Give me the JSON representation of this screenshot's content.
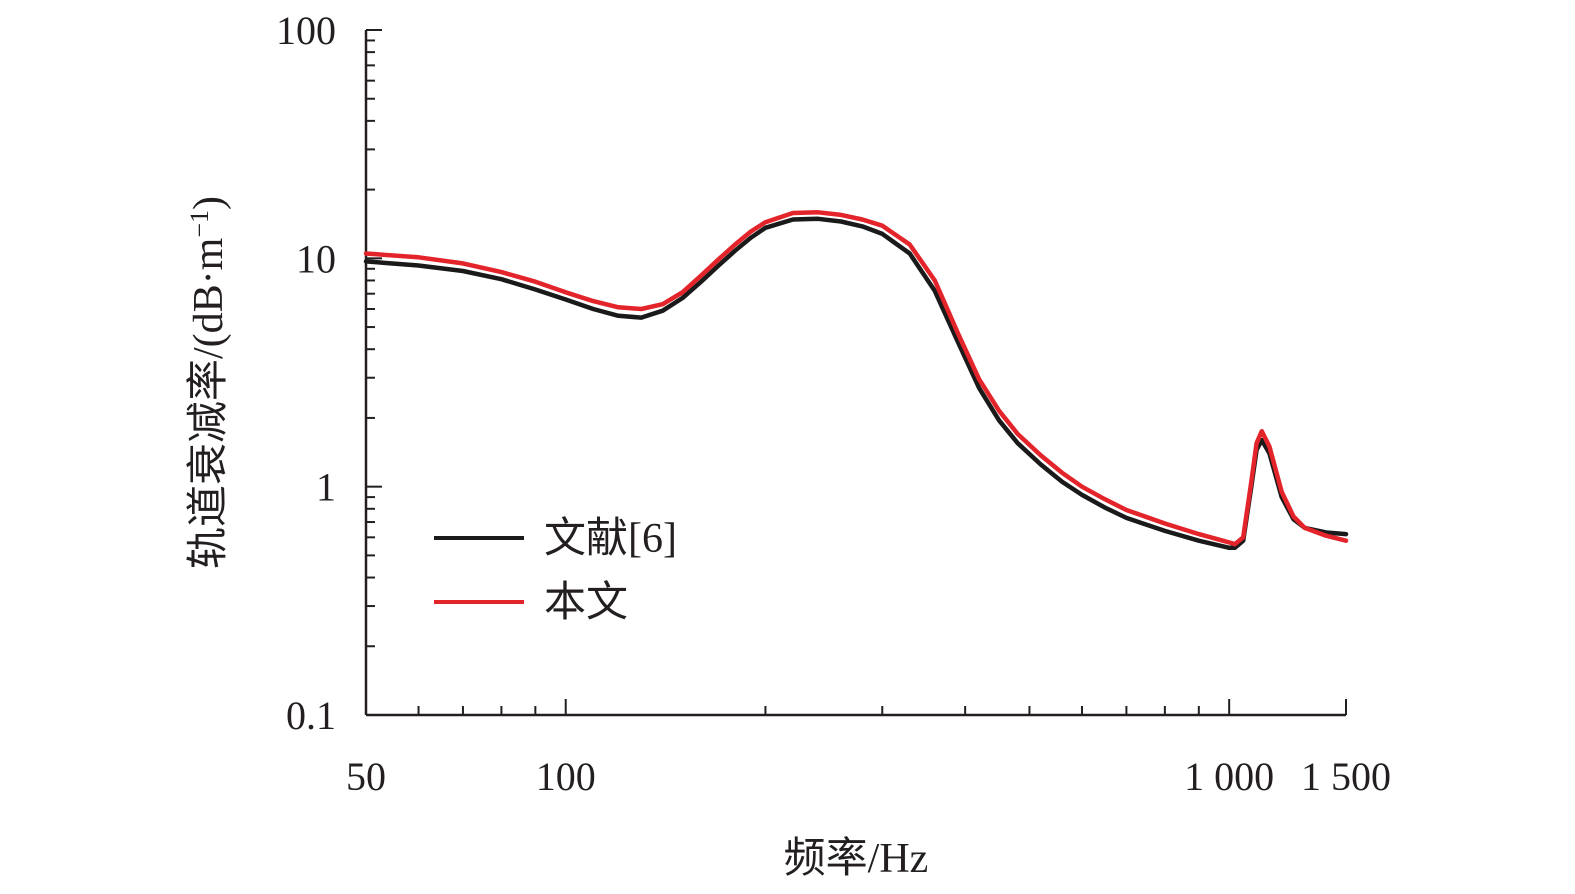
{
  "chart_data": {
    "type": "line",
    "xlabel": "频率/Hz",
    "ylabel": "轨道衰减率/(dB·m",
    "ylabel_superscript": "−1",
    "ylabel_close": ")",
    "x_scale": "log",
    "y_scale": "log",
    "xlim": [
      50,
      1500
    ],
    "ylim": [
      0.1,
      100
    ],
    "x_ticks": [
      50,
      100,
      1000,
      1500
    ],
    "x_tick_labels": [
      "50",
      "100",
      "1 000",
      "1 500"
    ],
    "y_ticks": [
      0.1,
      1,
      10,
      100
    ],
    "y_tick_labels": [
      "0.1",
      "1",
      "10",
      "100"
    ],
    "grid": false,
    "legend_position": "bottom-left",
    "series": [
      {
        "name": "文献[6]",
        "color": "#1a1a1a",
        "x": [
          50,
          60,
          70,
          80,
          90,
          100,
          110,
          120,
          130,
          140,
          150,
          160,
          170,
          180,
          190,
          200,
          220,
          240,
          260,
          280,
          300,
          330,
          360,
          390,
          420,
          450,
          480,
          520,
          560,
          600,
          650,
          700,
          800,
          900,
          1000,
          1020,
          1050,
          1080,
          1100,
          1120,
          1150,
          1200,
          1250,
          1300,
          1400,
          1500
        ],
        "y": [
          9.7,
          9.3,
          8.8,
          8.1,
          7.3,
          6.6,
          6.0,
          5.6,
          5.5,
          5.9,
          6.7,
          7.9,
          9.3,
          10.8,
          12.3,
          13.6,
          14.8,
          14.9,
          14.5,
          13.8,
          12.8,
          10.5,
          7.2,
          4.3,
          2.7,
          1.95,
          1.55,
          1.25,
          1.05,
          0.92,
          0.81,
          0.73,
          0.64,
          0.58,
          0.54,
          0.54,
          0.58,
          1.0,
          1.45,
          1.6,
          1.4,
          0.9,
          0.72,
          0.66,
          0.63,
          0.62
        ]
      },
      {
        "name": "本文",
        "color": "#e3242b",
        "x": [
          50,
          60,
          70,
          80,
          90,
          100,
          110,
          120,
          130,
          140,
          150,
          160,
          170,
          180,
          190,
          200,
          220,
          240,
          260,
          280,
          300,
          330,
          360,
          390,
          420,
          450,
          480,
          520,
          560,
          600,
          650,
          700,
          800,
          900,
          1000,
          1020,
          1050,
          1080,
          1100,
          1120,
          1150,
          1200,
          1250,
          1300,
          1400,
          1500
        ],
        "y": [
          10.5,
          10.1,
          9.5,
          8.7,
          7.9,
          7.1,
          6.5,
          6.1,
          6.0,
          6.3,
          7.1,
          8.4,
          9.9,
          11.5,
          13.1,
          14.4,
          15.8,
          15.9,
          15.5,
          14.8,
          13.9,
          11.5,
          8.0,
          4.7,
          2.95,
          2.15,
          1.7,
          1.37,
          1.15,
          1.0,
          0.88,
          0.79,
          0.69,
          0.62,
          0.57,
          0.56,
          0.6,
          1.05,
          1.55,
          1.75,
          1.5,
          0.95,
          0.74,
          0.66,
          0.61,
          0.58
        ]
      }
    ]
  }
}
